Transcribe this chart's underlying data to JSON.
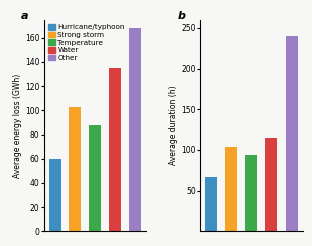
{
  "categories": [
    "Hurricane/typhoon",
    "Strong storm",
    "Temperature",
    "Water",
    "Other"
  ],
  "values_a": [
    60,
    103,
    88,
    135,
    168
  ],
  "values_b": [
    67,
    104,
    94,
    115,
    240
  ],
  "colors": [
    "#3e8fc1",
    "#f5a227",
    "#3da84a",
    "#d93f3f",
    "#9b7fc4"
  ],
  "ylabel_a": "Average energy loss (GWh)",
  "ylabel_b": "Average duration (h)",
  "ylim_a": [
    0,
    175
  ],
  "ylim_b": [
    0,
    260
  ],
  "yticks_a": [
    0,
    20,
    40,
    60,
    80,
    100,
    120,
    140,
    160
  ],
  "yticks_b": [
    50,
    100,
    150,
    200,
    250
  ],
  "label_a": "a",
  "label_b": "b",
  "bar_width": 0.6,
  "legend_fontsize": 5.2,
  "tick_fontsize": 5.5,
  "ylabel_fontsize": 5.5,
  "fig_facecolor": "#f7f7f5",
  "axes_facecolor": "#f7f7f5"
}
